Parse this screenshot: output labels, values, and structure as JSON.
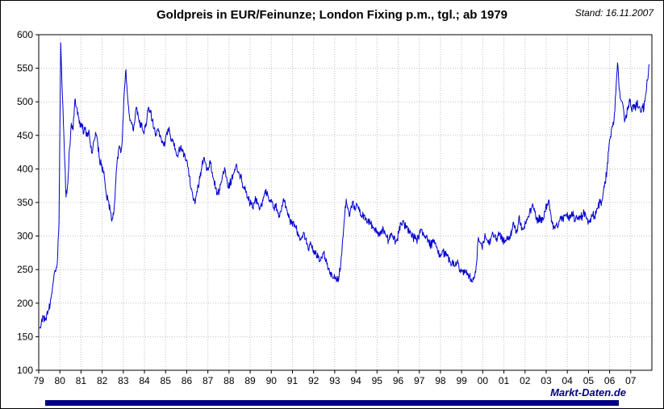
{
  "header": {
    "title": "Goldpreis in EUR/Feinunze; London Fixing p.m., tgl.; ab 1979",
    "stand": "Stand: 16.11.2007"
  },
  "footer": {
    "brand": "Markt-Daten.de"
  },
  "colors": {
    "line": "#0000cc",
    "grid": "#bfbfbf",
    "frame": "#000000",
    "brand_text": "#00007f",
    "brand_bar": "#000080"
  },
  "chart_data": {
    "type": "line",
    "title": "Goldpreis in EUR/Feinunze; London Fixing p.m., tgl.; ab 1979",
    "xlabel": "",
    "ylabel": "",
    "legend": "none",
    "grid": true,
    "x_range": [
      1979,
      2008
    ],
    "y_range": [
      100,
      600
    ],
    "y_ticks": [
      100,
      150,
      200,
      250,
      300,
      350,
      400,
      450,
      500,
      550,
      600
    ],
    "x_tick_labels": [
      "79",
      "80",
      "81",
      "82",
      "83",
      "84",
      "85",
      "86",
      "87",
      "88",
      "89",
      "90",
      "91",
      "92",
      "93",
      "94",
      "95",
      "96",
      "97",
      "98",
      "99",
      "00",
      "01",
      "02",
      "03",
      "04",
      "05",
      "06",
      "07"
    ],
    "line_color": "#0000cc",
    "series": [
      {
        "name": "Goldpreis EUR/Feinunze (London Fixing p.m.)",
        "interval": "monthly",
        "values_by_year": {
          "1979": [
            163,
            172,
            180,
            174,
            182,
            190,
            199,
            214,
            237,
            247,
            258,
            320
          ],
          "1980": [
            588,
            505,
            430,
            358,
            378,
            432,
            468,
            458,
            503,
            492,
            478,
            462
          ],
          "1981": [
            468,
            452,
            462,
            448,
            458,
            432,
            425,
            442,
            452,
            438,
            415,
            405
          ],
          "1982": [
            398,
            382,
            358,
            352,
            340,
            322,
            332,
            372,
            412,
            432,
            424,
            448
          ],
          "1983": [
            512,
            548,
            505,
            478,
            468,
            458,
            470,
            492,
            478,
            462,
            468,
            455
          ],
          "1984": [
            462,
            478,
            492,
            484,
            472,
            460,
            452,
            458,
            450,
            446,
            440,
            434
          ],
          "1985": [
            452,
            460,
            452,
            444,
            438,
            430,
            420,
            428,
            432,
            426,
            420,
            412
          ],
          "1986": [
            405,
            390,
            370,
            358,
            352,
            362,
            374,
            386,
            400,
            415,
            410,
            398
          ],
          "1987": [
            402,
            408,
            395,
            382,
            372,
            362,
            368,
            380,
            392,
            402,
            388,
            372
          ],
          "1988": [
            378,
            385,
            392,
            398,
            403,
            396,
            388,
            380,
            372,
            365,
            358,
            352
          ],
          "1989": [
            348,
            342,
            350,
            356,
            348,
            340,
            345,
            358,
            368,
            362,
            355,
            350
          ],
          "1990": [
            352,
            342,
            348,
            338,
            330,
            336,
            348,
            352,
            344,
            334,
            325,
            318
          ],
          "1991": [
            322,
            315,
            308,
            302,
            296,
            300,
            305,
            295,
            288,
            283,
            287,
            280
          ],
          "1992": [
            278,
            272,
            268,
            262,
            268,
            274,
            268,
            258,
            252,
            246,
            240,
            238
          ],
          "1993": [
            236,
            233,
            242,
            262,
            295,
            325,
            355,
            342,
            330,
            345,
            352,
            338
          ],
          "1994": [
            348,
            340,
            332,
            328,
            332,
            326,
            320,
            324,
            318,
            312,
            308,
            310
          ],
          "1995": [
            306,
            300,
            308,
            312,
            305,
            298,
            293,
            297,
            302,
            296,
            292,
            296
          ],
          "1996": [
            308,
            318,
            322,
            316,
            312,
            308,
            304,
            300,
            298,
            296,
            294,
            297
          ],
          "1997": [
            305,
            310,
            302,
            296,
            298,
            292,
            286,
            290,
            294,
            284,
            276,
            270
          ],
          "1998": [
            272,
            278,
            270,
            274,
            268,
            262,
            258,
            262,
            256,
            260,
            254,
            250
          ],
          "1999": [
            248,
            244,
            246,
            242,
            240,
            236,
            238,
            242,
            260,
            298,
            290,
            284
          ],
          "2000": [
            292,
            300,
            294,
            288,
            296,
            306,
            298,
            294,
            300,
            304,
            298,
            294
          ],
          "2001": [
            290,
            295,
            300,
            296,
            310,
            320,
            312,
            306,
            328,
            316,
            310,
            314
          ],
          "2002": [
            318,
            328,
            334,
            340,
            346,
            336,
            328,
            322,
            330,
            320,
            326,
            336
          ],
          "2003": [
            348,
            354,
            334,
            318,
            312,
            316,
            312,
            322,
            330,
            324,
            330,
            332
          ],
          "2004": [
            330,
            326,
            336,
            330,
            322,
            326,
            330,
            328,
            330,
            336,
            330,
            324
          ],
          "2005": [
            322,
            328,
            332,
            330,
            336,
            344,
            350,
            352,
            366,
            378,
            400,
            428
          ],
          "2006": [
            448,
            464,
            472,
            512,
            558,
            518,
            502,
            496,
            470,
            476,
            494,
            500
          ],
          "2007": [
            488,
            496,
            490,
            498,
            492,
            486,
            494,
            490,
            512,
            532,
            556
          ]
        }
      }
    ]
  }
}
